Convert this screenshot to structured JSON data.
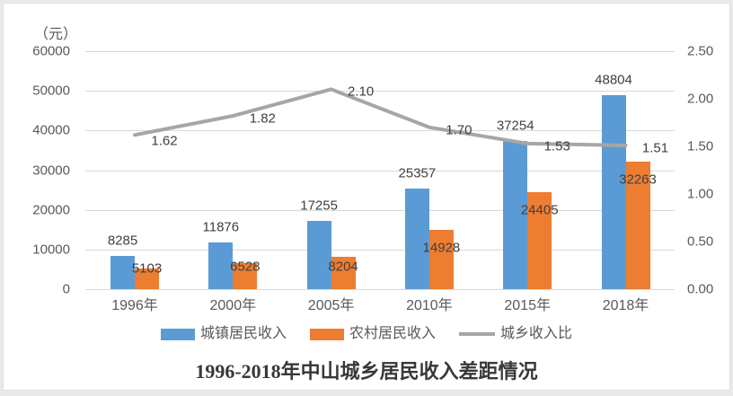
{
  "chart_data": {
    "type": "bar",
    "subtype": "grouped-bars-with-line-overlay",
    "title": "1996-2018年中山城乡居民收入差距情况",
    "unit_label": "（元）",
    "categories": [
      "1996年",
      "2000年",
      "2005年",
      "2010年",
      "2015年",
      "2018年"
    ],
    "series": [
      {
        "name": "城镇居民收入",
        "type": "bar",
        "color": "#5B9BD5",
        "axis": "left",
        "values": [
          8285,
          11876,
          17255,
          25357,
          37254,
          48804
        ]
      },
      {
        "name": "农村居民收入",
        "type": "bar",
        "color": "#ED7D31",
        "axis": "left",
        "values": [
          5103,
          6528,
          8204,
          14928,
          24405,
          32263
        ]
      },
      {
        "name": "城乡收入比",
        "type": "line",
        "color": "#A6A6A6",
        "axis": "right",
        "values": [
          1.62,
          1.82,
          2.1,
          1.7,
          1.53,
          1.51
        ]
      }
    ],
    "left_axis": {
      "min": 0,
      "max": 60000,
      "tick_step": 10000,
      "ticks": [
        "0",
        "10000",
        "20000",
        "30000",
        "40000",
        "50000",
        "60000"
      ]
    },
    "right_axis": {
      "min": 0,
      "max": 2.5,
      "tick_step": 0.5,
      "ticks": [
        "0.00",
        "0.50",
        "1.00",
        "1.50",
        "2.00",
        "2.50"
      ]
    },
    "grid": true,
    "legend_position": "bottom",
    "colors": {
      "gridline": "#d9d9d9",
      "tick_text": "#595959",
      "data_label_text": "#404040",
      "line": "#A6A6A6"
    }
  }
}
